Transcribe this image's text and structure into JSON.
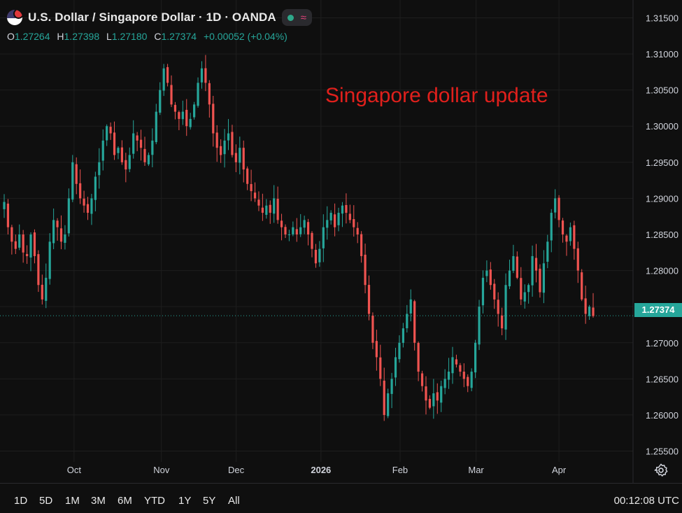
{
  "header": {
    "symbol_title": "U.S. Dollar / Singapore Dollar · 1D · OANDA",
    "flag_icon": "us-sg-flag-icon",
    "status_icons": [
      "market-open-dot-icon",
      "wave-indicator-icon"
    ],
    "ohlc": {
      "o_label": "O",
      "o": "1.27264",
      "h_label": "H",
      "h": "1.27398",
      "l_label": "L",
      "l": "1.27180",
      "c_label": "C",
      "c": "1.27374",
      "change": "+0.00052 (+0.04%)"
    }
  },
  "annotation": "Singapore dollar update",
  "last_price_tag": "1.27374",
  "timeframes": [
    "1D",
    "5D",
    "1M",
    "3M",
    "6M",
    "YTD",
    "1Y",
    "5Y",
    "All"
  ],
  "clock": "00:12:08 UTC",
  "colors": {
    "up": "#26a69a",
    "down": "#ef5350",
    "annotation": "#e0201c",
    "background": "#0f0f0f",
    "grid": "#1e1e1e"
  },
  "chart_data": {
    "type": "candlestick",
    "y_ticks": [
      "1.31500",
      "1.31000",
      "1.30500",
      "1.30000",
      "1.29500",
      "1.29000",
      "1.28500",
      "1.28000",
      "1.27500",
      "1.27000",
      "1.26500",
      "1.26000",
      "1.25500"
    ],
    "ylim": [
      1.2535,
      1.3165
    ],
    "x_ticks": [
      "Oct",
      "Nov",
      "Dec",
      "2026",
      "Feb",
      "Mar",
      "Apr"
    ],
    "last_price": 1.27374,
    "series_close": [
      1.2895,
      1.286,
      1.284,
      1.283,
      1.285,
      1.2825,
      1.282,
      1.285,
      1.282,
      1.278,
      1.276,
      1.279,
      1.284,
      1.287,
      1.286,
      1.284,
      1.285,
      1.29,
      1.295,
      1.292,
      1.29,
      1.289,
      1.288,
      1.29,
      1.293,
      1.295,
      1.298,
      1.3,
      1.299,
      1.296,
      1.297,
      1.295,
      1.294,
      1.296,
      1.299,
      1.298,
      1.297,
      1.295,
      1.296,
      1.298,
      1.302,
      1.305,
      1.308,
      1.306,
      1.303,
      1.302,
      1.301,
      1.302,
      1.3,
      1.301,
      1.303,
      1.306,
      1.308,
      1.306,
      1.303,
      1.299,
      1.297,
      1.296,
      1.298,
      1.299,
      1.296,
      1.295,
      1.297,
      1.294,
      1.292,
      1.291,
      1.29,
      1.289,
      1.288,
      1.289,
      1.288,
      1.29,
      1.287,
      1.286,
      1.285,
      1.285,
      1.286,
      1.285,
      1.286,
      1.287,
      1.285,
      1.283,
      1.281,
      1.283,
      1.286,
      1.287,
      1.288,
      1.286,
      1.288,
      1.289,
      1.288,
      1.287,
      1.286,
      1.285,
      1.282,
      1.278,
      1.274,
      1.27,
      1.268,
      1.265,
      1.26,
      1.263,
      1.265,
      1.268,
      1.27,
      1.272,
      1.274,
      1.276,
      1.27,
      1.266,
      1.264,
      1.262,
      1.261,
      1.263,
      1.262,
      1.264,
      1.265,
      1.266,
      1.268,
      1.267,
      1.266,
      1.265,
      1.264,
      1.266,
      1.27,
      1.275,
      1.279,
      1.28,
      1.278,
      1.276,
      1.274,
      1.272,
      1.278,
      1.28,
      1.282,
      1.279,
      1.276,
      1.277,
      1.278,
      1.282,
      1.28,
      1.277,
      1.281,
      1.284,
      1.288,
      1.29,
      1.287,
      1.285,
      1.284,
      1.286,
      1.283,
      1.28,
      1.276,
      1.274,
      1.275,
      1.2737
    ]
  }
}
